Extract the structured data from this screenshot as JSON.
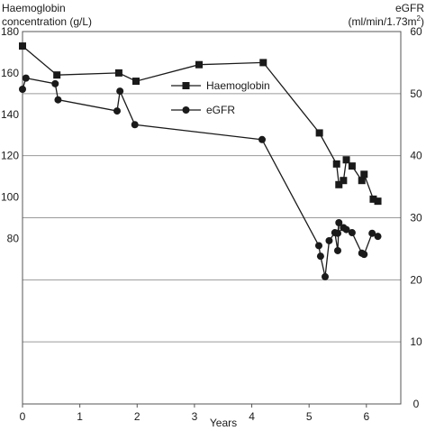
{
  "chart_data": {
    "type": "line",
    "ylabel_left": [
      "Haemoglobin",
      "concentration (g/L)"
    ],
    "ylabel_right": [
      "eGFR",
      "(ml/min/1.73m",
      "2",
      ")"
    ],
    "xlabel": "Years",
    "xlim": [
      0,
      6.6
    ],
    "xticks": [
      0,
      1,
      2,
      3,
      4,
      5,
      6
    ],
    "ylim_left": [
      0,
      180
    ],
    "yticks_left": [
      80,
      100,
      120,
      140,
      160,
      180
    ],
    "ylim_right": [
      0,
      60
    ],
    "yticks_right": [
      0,
      10,
      20,
      30,
      40,
      50,
      60
    ],
    "grid": true,
    "legend_placement": "center-right",
    "series": [
      {
        "name": "Haemoglobin",
        "axis": "left",
        "marker": "square",
        "color": "#1a1a1a",
        "x": [
          0.0,
          0.6,
          1.68,
          1.98,
          3.08,
          4.2,
          5.18,
          5.48,
          5.52,
          5.6,
          5.65,
          5.75,
          5.92,
          5.96,
          6.12,
          6.2
        ],
        "y": [
          173,
          159,
          160,
          156,
          164,
          165,
          131,
          116,
          106,
          108,
          118,
          115,
          108,
          111,
          99,
          98
        ]
      },
      {
        "name": "eGFR",
        "axis": "right",
        "marker": "circle",
        "color": "#1a1a1a",
        "x": [
          0.0,
          0.06,
          0.57,
          0.62,
          1.65,
          1.7,
          1.96,
          4.18,
          5.17,
          5.2,
          5.28,
          5.35,
          5.45,
          5.5,
          5.52,
          5.5,
          5.6,
          5.65,
          5.75,
          5.92,
          5.96,
          6.1,
          6.2
        ],
        "y": [
          50.7,
          52.5,
          51.6,
          49.0,
          47.2,
          50.4,
          45.0,
          42.6,
          25.5,
          23.8,
          20.5,
          26.3,
          27.6,
          24.7,
          29.2,
          27.5,
          28.4,
          28.1,
          27.6,
          24.3,
          24.1,
          27.5,
          27.0
        ]
      }
    ]
  }
}
